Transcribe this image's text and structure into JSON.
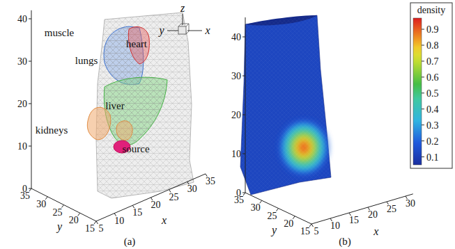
{
  "chart_data": [
    {
      "type": "3d-mesh",
      "panel_label": "(a)",
      "x_label": "x",
      "y_label": "y",
      "z_label": "z",
      "xlim": [
        5,
        35
      ],
      "ylim": [
        15,
        35
      ],
      "zlim": [
        0,
        42
      ],
      "xticks": [
        5,
        10,
        15,
        20,
        25,
        30,
        35
      ],
      "yticks": [
        15,
        20,
        25,
        30,
        35
      ],
      "zticks": [
        0,
        10,
        20,
        30,
        40
      ],
      "annotations": [
        "muscle",
        "lungs",
        "heart",
        "liver",
        "kidneys",
        "source"
      ]
    },
    {
      "type": "3d-surface",
      "panel_label": "(b)",
      "x_label": "x",
      "y_label": "y",
      "xlim": [
        5,
        32
      ],
      "ylim": [
        15,
        35
      ],
      "zlim": [
        0,
        45
      ],
      "xticks": [
        5,
        10,
        15,
        20,
        25,
        30
      ],
      "yticks": [
        15,
        20,
        25,
        30,
        35
      ],
      "zticks": [
        0,
        10,
        20,
        30,
        40
      ],
      "colorbar": {
        "label": "density",
        "range": [
          0.05,
          0.97
        ],
        "ticks": [
          0.1,
          0.2,
          0.3,
          0.4,
          0.5,
          0.6,
          0.7,
          0.8,
          0.9
        ]
      }
    }
  ]
}
